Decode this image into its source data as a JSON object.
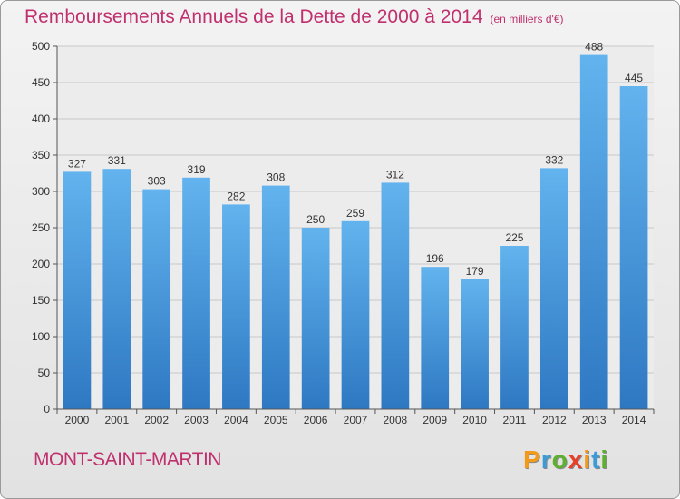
{
  "chart_data": {
    "type": "bar",
    "title": "Remboursements Annuels de la Dette de 2000 à 2014",
    "subtitle": "(en milliers d'€)",
    "categories": [
      "2000",
      "2001",
      "2002",
      "2003",
      "2004",
      "2005",
      "2006",
      "2007",
      "2008",
      "2009",
      "2010",
      "2011",
      "2012",
      "2013",
      "2014"
    ],
    "values": [
      327,
      331,
      303,
      319,
      282,
      308,
      250,
      259,
      312,
      196,
      179,
      225,
      332,
      488,
      445
    ],
    "ylim": [
      0,
      500
    ],
    "yticks": [
      0,
      50,
      100,
      150,
      200,
      250,
      300,
      350,
      400,
      450,
      500
    ],
    "grid": true,
    "bar_color": "#3d8fd8"
  },
  "footer": {
    "commune": "MONT-SAINT-MARTIN",
    "logo": [
      "P",
      "r",
      "o",
      "x",
      "i",
      "t",
      "i"
    ],
    "logo_colors": [
      "#f29a1a",
      "#3a9bd6",
      "#5fb030",
      "#e83f2a",
      "#f29a1a",
      "#3a9bd6",
      "#5fb030"
    ]
  }
}
